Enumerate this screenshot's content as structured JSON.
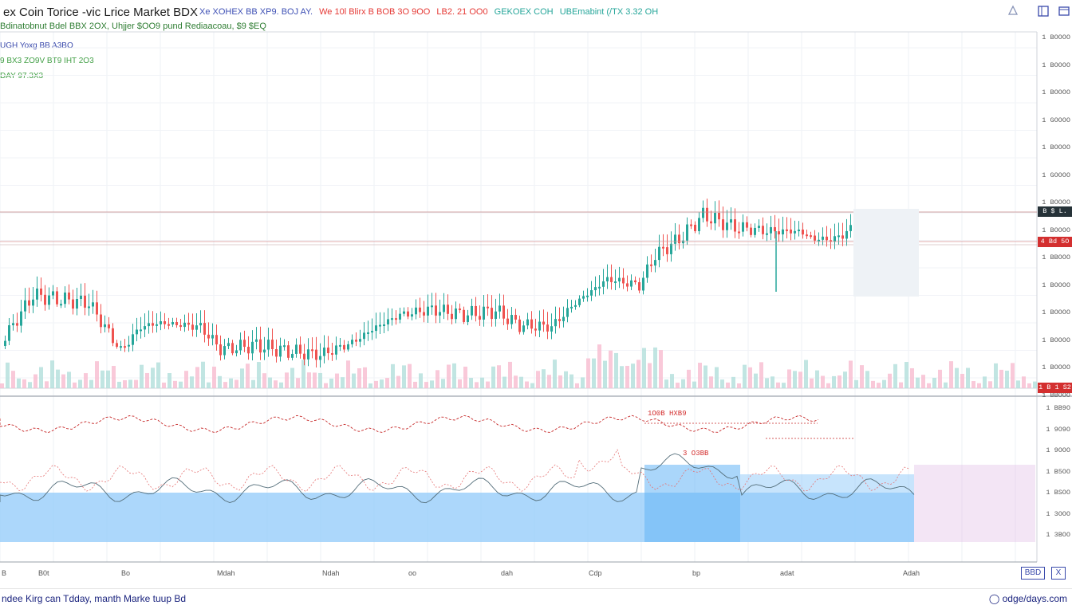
{
  "header": {
    "title": "ex Coin Torice -vic Lrice Market BDX",
    "info_segments": [
      {
        "text": "Xe XOHEX BB XP9. BOJ AY.",
        "color": "#3f51b5"
      },
      {
        "text": "We 10l Blirx B BOB 3O 9OO",
        "color": "#e53935"
      },
      {
        "text": "LB2. 21 OO0",
        "color": "#e53935"
      },
      {
        "text": "GEKOEX COH",
        "color": "#26a69a"
      },
      {
        "text": "UBEmabint (/TX 3.32 OH",
        "color": "#26a69a"
      }
    ],
    "subtitle": "Bdinatobnut Bdel BBX 2OX, Uhjjer $OO9 pund Rediaacoau, $9 $EQ",
    "legend_lines": [
      {
        "text": "UGH  Yoxg  BB A3BO",
        "color": "#3949ab"
      },
      {
        "text": "9 BX3  ZO9V  BT9 IHT  2O3",
        "color": "#43a047"
      },
      {
        "text": "DAY  97.3X3",
        "color": "#43a047"
      }
    ]
  },
  "icons": {
    "alert": "bell-icon",
    "layout": "layout-icon"
  },
  "price_axis": [
    "1 BOOOO",
    "1 BOOOO",
    "1 BOOOO",
    "1 GOOOO",
    "1 BOOOO",
    "1 GOOOO",
    "1 BOOOO",
    "1 BOOOO",
    "1 BBOOO",
    "1 BOOOO",
    "1 BOOOO",
    "1 BOOOO",
    "1 BOOOO",
    "1 BBOOO"
  ],
  "price_tags": [
    {
      "text": "B $ L. 5O",
      "color": "#263238"
    },
    {
      "text": "4 Bd 5O",
      "color": "#d32f2f"
    },
    {
      "text": "1 B 1 S2",
      "color": "#d32f2f"
    }
  ],
  "indicator_axis": [
    "1 BB9O",
    "1 9O9O",
    "1 9OOO",
    "1 B5OO",
    "1 BSOO",
    "1 3OOO",
    "1 3BOO"
  ],
  "indicator_labels": [
    "1O0B  HXB9",
    "3 O3BB"
  ],
  "time_axis": [
    "B",
    "B0t",
    "Bo",
    "Mdah",
    "Ndah",
    "oo",
    "dah",
    "Cdp",
    "bp",
    "adat",
    "Adah"
  ],
  "footer": {
    "left_text": "ndee Kirg can Tdday, manth Marke tuup Bd",
    "brand": "odge/days.com"
  },
  "buttons": {
    "corner_a": "BBD",
    "corner_b": "X"
  },
  "colors": {
    "up": "#26a69a",
    "down": "#ef5350",
    "area_fill": "#90caf9",
    "highlight": "#e1bee7",
    "accent": "#3949ab"
  }
}
